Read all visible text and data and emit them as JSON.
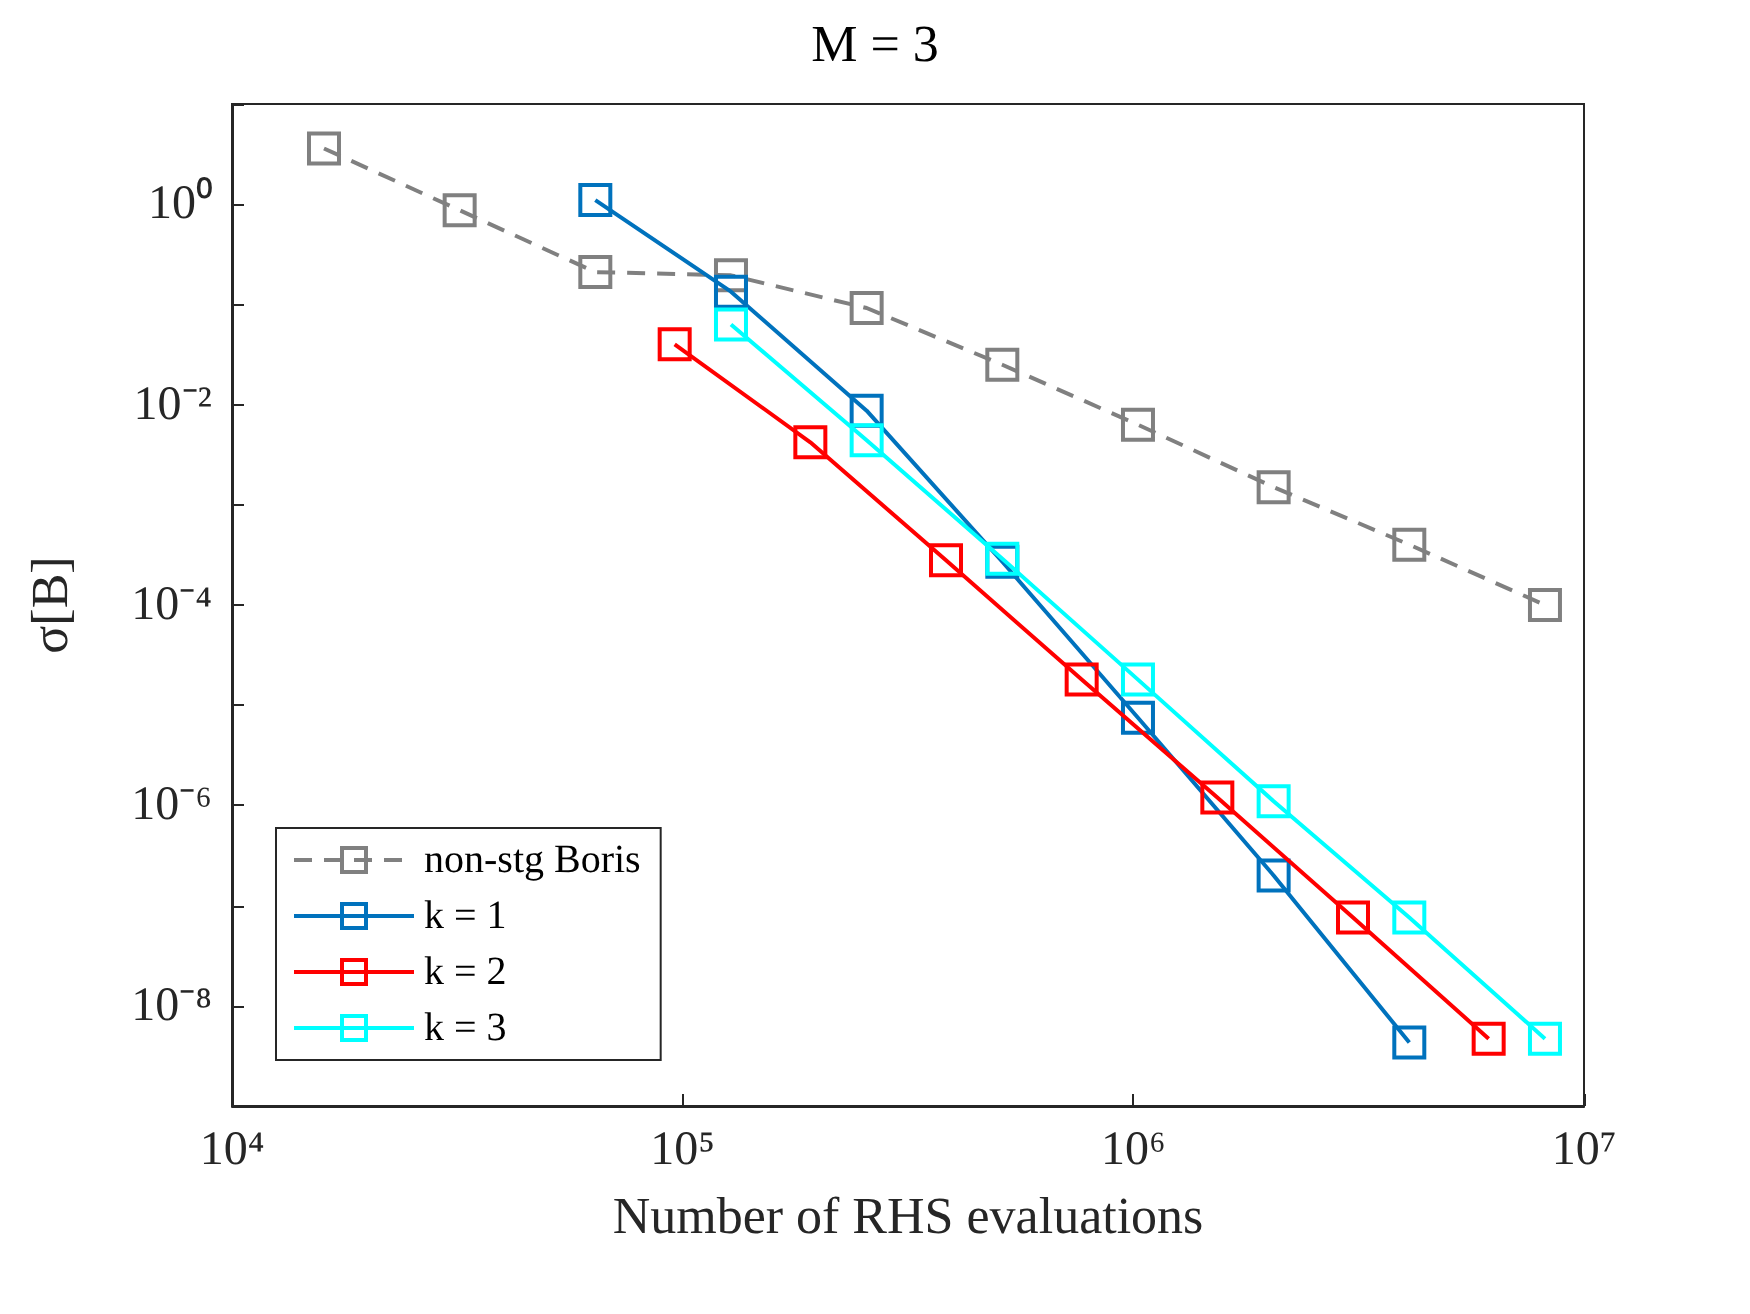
{
  "chart_data": {
    "type": "line",
    "title": "M = 3",
    "xlabel": "Number of RHS evaluations",
    "ylabel": "σ[B]",
    "log": "xy",
    "grid": false,
    "legend": "bottom left",
    "marker": "square",
    "xlim": [
      10000,
      10000000
    ],
    "xticks": [
      {
        "value": 10000,
        "label": "10⁴"
      },
      {
        "value": 100000,
        "label": "10⁵"
      },
      {
        "value": 1000000,
        "label": "10⁶"
      },
      {
        "value": 10000000,
        "label": "10⁷"
      }
    ],
    "ylim": [
      1e-09,
      10
    ],
    "yticks": [
      {
        "value": 1e-09,
        "label": null
      },
      {
        "value": 1e-08,
        "label": "10⁻⁸"
      },
      {
        "value": 1e-07,
        "label": null
      },
      {
        "value": 1e-06,
        "label": "10⁻⁶"
      },
      {
        "value": 1e-05,
        "label": null
      },
      {
        "value": 0.0001,
        "label": "10⁻⁴"
      },
      {
        "value": 0.001,
        "label": null
      },
      {
        "value": 0.01,
        "label": "10⁻²"
      },
      {
        "value": 0.1,
        "label": null
      },
      {
        "value": 1,
        "label": "10⁰"
      },
      {
        "value": 10,
        "label": null
      }
    ],
    "series": [
      {
        "name": "non-stg Boris",
        "color": "#808080",
        "line_style": "dashed",
        "x": [
          16000,
          32000,
          64000,
          128000,
          256000,
          512000,
          1024000,
          2048000,
          4096000,
          8192000
        ],
        "values": [
          3.6,
          0.87,
          0.21,
          0.195,
          0.092,
          0.025,
          0.0063,
          0.0015,
          0.0004,
          0.0001
        ]
      },
      {
        "name": "k = 1",
        "color": "#0072bd",
        "line_style": "solid",
        "x": [
          64000,
          128000,
          256000,
          512000,
          1024000,
          2048000,
          4096000
        ],
        "values": [
          1.1,
          0.134,
          0.0087,
          0.00027,
          7.5e-06,
          2e-07,
          4.3e-09
        ]
      },
      {
        "name": "k = 2",
        "color": "#ff0000",
        "line_style": "solid",
        "x": [
          96000,
          192000,
          384000,
          768000,
          1536000,
          3072000,
          6144000
        ],
        "values": [
          0.04,
          0.0042,
          0.00028,
          1.8e-05,
          1.2e-06,
          7.6e-08,
          4.7e-09
        ]
      },
      {
        "name": "k = 3",
        "color": "#00ffff",
        "line_style": "solid",
        "x": [
          128000,
          256000,
          512000,
          1024000,
          2048000,
          4096000,
          8192000
        ],
        "values": [
          0.063,
          0.0044,
          0.00029,
          1.8e-05,
          1.1e-06,
          7.6e-08,
          4.7e-09
        ]
      }
    ]
  }
}
